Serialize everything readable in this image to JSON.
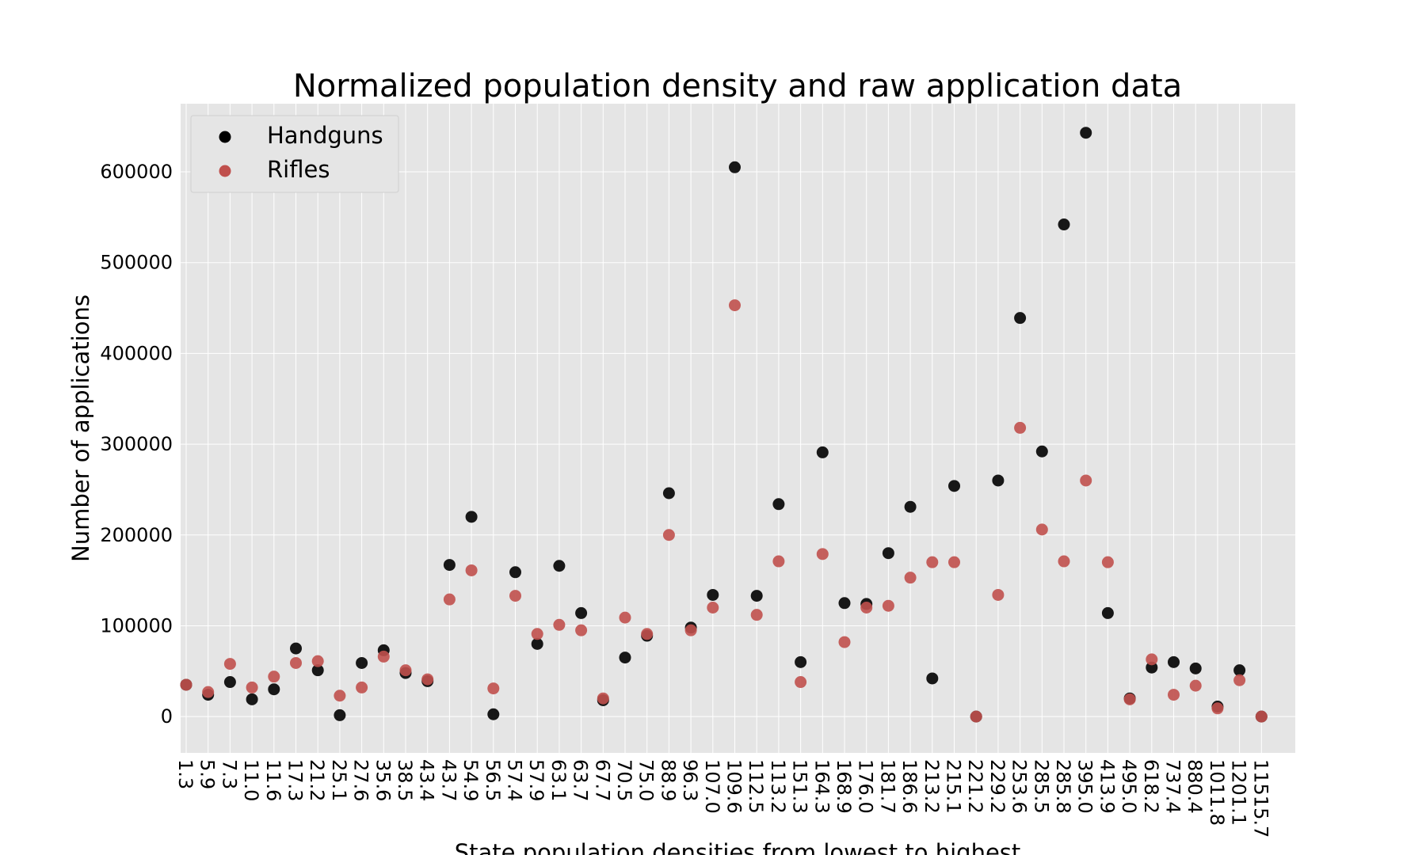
{
  "chart_data": {
    "type": "scatter",
    "title": "Normalized population density and raw application data",
    "xlabel": "State population densities from lowest to highest",
    "ylabel": "Number of applications",
    "ylim": [
      -40000,
      675000
    ],
    "yticks": [
      0,
      100000,
      200000,
      300000,
      400000,
      500000,
      600000
    ],
    "ytick_labels": [
      "0",
      "100000",
      "200000",
      "300000",
      "400000",
      "500000",
      "600000"
    ],
    "grid": true,
    "legend_position": "top-left",
    "categories": [
      "1.3",
      "5.9",
      "7.3",
      "11.0",
      "11.6",
      "17.3",
      "21.2",
      "25.1",
      "27.6",
      "35.6",
      "38.5",
      "43.4",
      "43.7",
      "54.9",
      "56.5",
      "57.4",
      "57.9",
      "63.1",
      "63.7",
      "67.7",
      "70.5",
      "75.0",
      "88.9",
      "96.3",
      "107.0",
      "109.6",
      "112.5",
      "113.2",
      "151.3",
      "164.3",
      "168.9",
      "176.0",
      "181.7",
      "186.6",
      "213.2",
      "215.1",
      "221.2",
      "229.2",
      "253.6",
      "285.5",
      "285.8",
      "395.0",
      "413.9",
      "495.0",
      "618.2",
      "737.4",
      "880.4",
      "1011.8",
      "1201.1",
      "11515.7"
    ],
    "series": [
      {
        "name": "Handguns",
        "color": "#000000",
        "values": [
          35000,
          24000,
          38000,
          19000,
          30000,
          75000,
          51000,
          1500,
          59000,
          73000,
          48000,
          39000,
          167000,
          220000,
          2500,
          159000,
          80000,
          166000,
          114000,
          18000,
          65000,
          89000,
          246000,
          98000,
          134000,
          605000,
          133000,
          234000,
          60000,
          291000,
          125000,
          124000,
          180000,
          231000,
          42000,
          254000,
          0,
          260000,
          439000,
          292000,
          542000,
          643000,
          114000,
          20000,
          54000,
          60000,
          53000,
          11000,
          51000,
          0
        ]
      },
      {
        "name": "Rifles",
        "color": "#c0504d",
        "values": [
          35000,
          27000,
          58000,
          32000,
          44000,
          59000,
          61000,
          23000,
          32000,
          66000,
          51000,
          41000,
          129000,
          161000,
          31000,
          133000,
          91000,
          101000,
          95000,
          20000,
          109000,
          91000,
          200000,
          95000,
          120000,
          453000,
          112000,
          171000,
          38000,
          179000,
          82000,
          120000,
          122000,
          153000,
          170000,
          170000,
          0,
          134000,
          318000,
          206000,
          171000,
          260000,
          170000,
          19000,
          63000,
          24000,
          34000,
          9000,
          40000,
          0
        ]
      }
    ]
  }
}
